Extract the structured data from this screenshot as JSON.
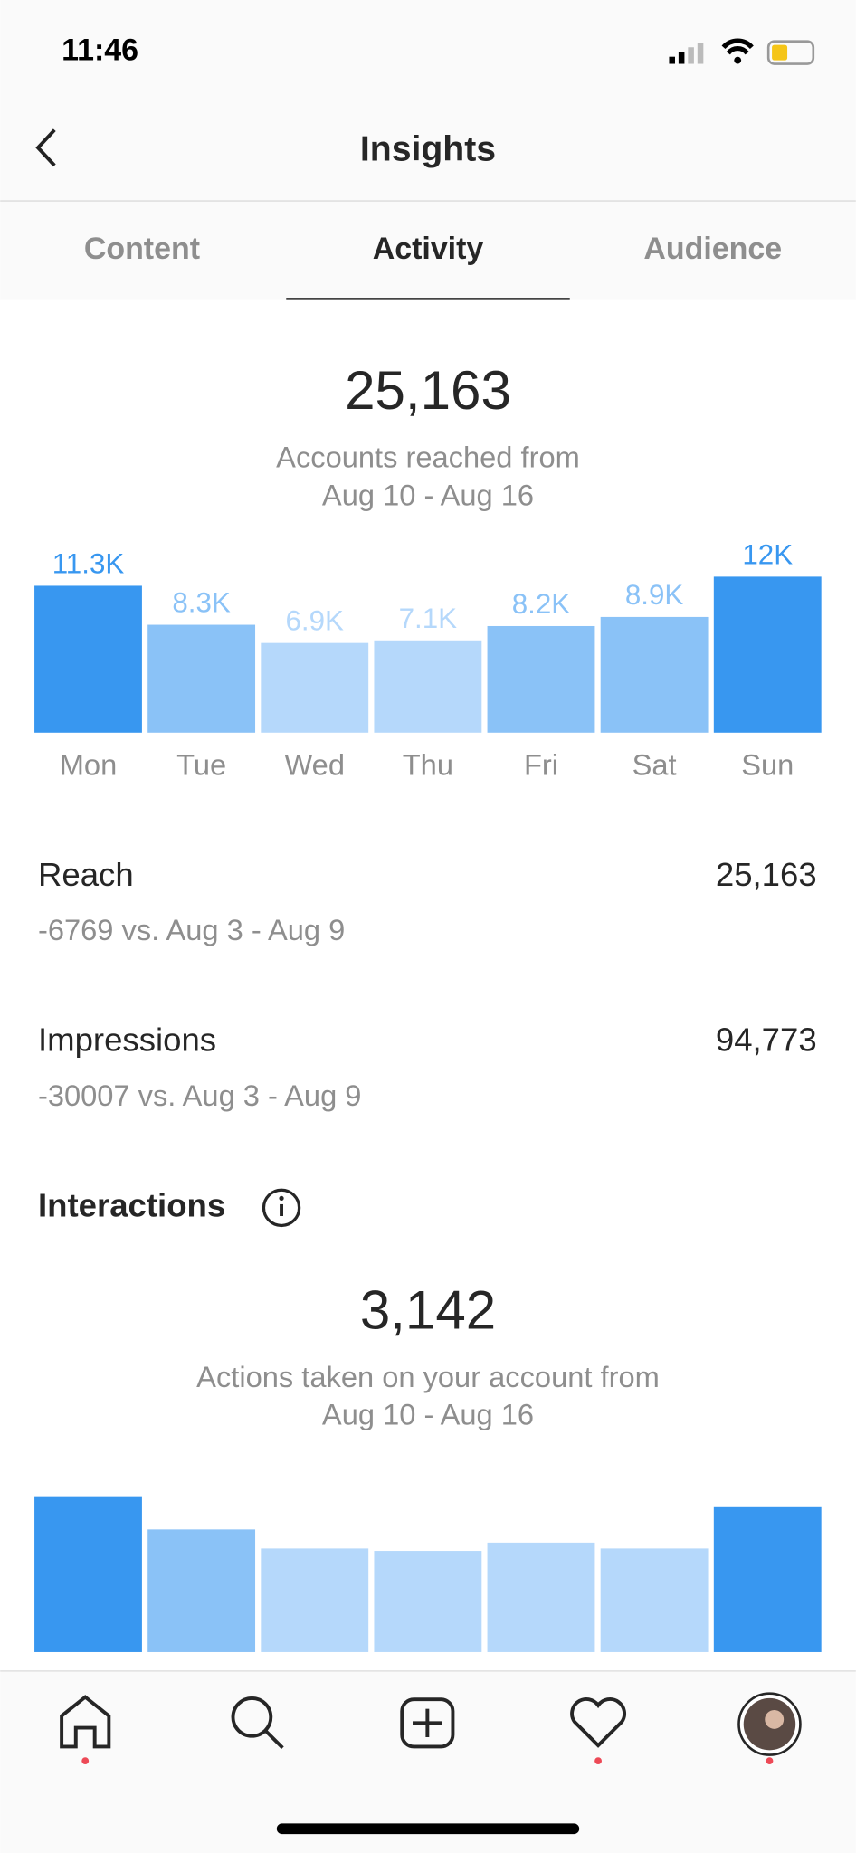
{
  "status_bar": {
    "time": "11:46"
  },
  "header": {
    "title": "Insights"
  },
  "tabs": {
    "items": [
      "Content",
      "Activity",
      "Audience"
    ],
    "active": 1
  },
  "reach": {
    "total": "25,163",
    "caption": "Accounts reached from",
    "dates": "Aug 10 - Aug 16"
  },
  "metrics": [
    {
      "label": "Reach",
      "value": "25,163",
      "comparison": "-6769 vs. Aug 3 - Aug 9"
    },
    {
      "label": "Impressions",
      "value": "94,773",
      "comparison": "-30007 vs. Aug 3 - Aug 9"
    }
  ],
  "interactions": {
    "heading": "Interactions",
    "total": "3,142",
    "caption": "Actions taken on your account from",
    "dates": "Aug 10 - Aug 16"
  },
  "chart_data": [
    {
      "type": "bar",
      "categories": [
        "Mon",
        "Tue",
        "Wed",
        "Thu",
        "Fri",
        "Sat",
        "Sun"
      ],
      "values": [
        11300,
        8300,
        6900,
        7100,
        8200,
        8900,
        12000
      ],
      "value_labels": [
        "11.3K",
        "8.3K",
        "6.9K",
        "7.1K",
        "8.2K",
        "8.9K",
        "12K"
      ],
      "colors": [
        "#3897f0",
        "#8ac2f7",
        "#b5d8fb",
        "#b5d8fb",
        "#8ac2f7",
        "#8ac2f7",
        "#3897f0"
      ],
      "ylim": [
        0,
        12000
      ]
    },
    {
      "type": "bar",
      "values": [
        582,
        458,
        387,
        378,
        409,
        387,
        541
      ],
      "colors": [
        "#3897f0",
        "#8ac2f7",
        "#b5d8fb",
        "#b5d8fb",
        "#b5d8fb",
        "#b5d8fb",
        "#3897f0"
      ],
      "ylim": [
        0,
        600
      ]
    }
  ]
}
